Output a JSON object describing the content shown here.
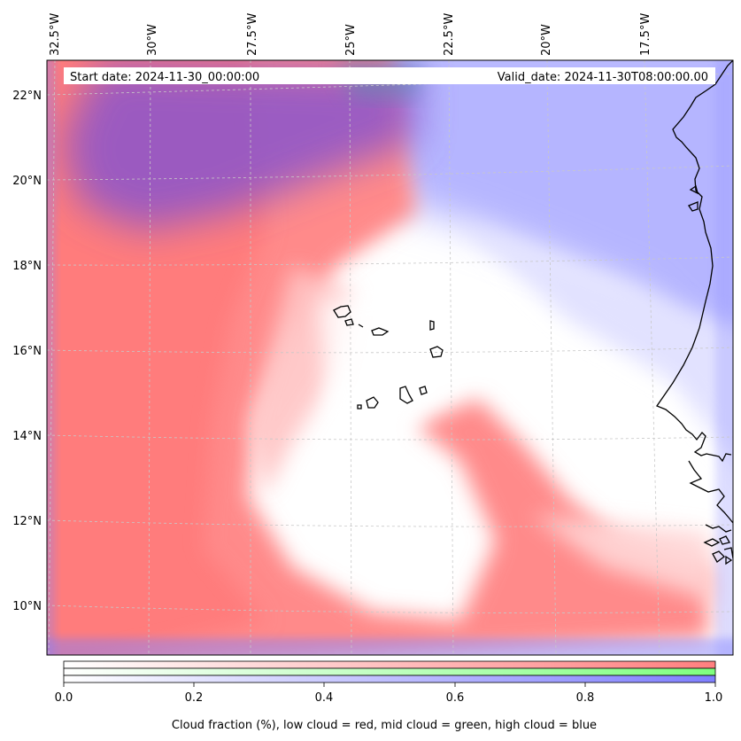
{
  "map": {
    "start_date": "Start date: 2024-11-30_00:00:00",
    "valid_date": "Valid_date: 2024-11-30T08:00:00.00",
    "lon_labels": [
      "32.5°W",
      "30°W",
      "27.5°W",
      "25°W",
      "22.5°W",
      "20°W",
      "17.5°W"
    ],
    "lat_labels": [
      "22°N",
      "20°N",
      "18°N",
      "16°N",
      "14°N",
      "12°N",
      "10°N"
    ],
    "colors": {
      "low_cloud": "#ff7f7f",
      "mid_cloud": "#7fff7f",
      "high_cloud": "#7f7fff",
      "coastline": "#000000",
      "gridline": "#c8c8c8"
    }
  },
  "colorbar": {
    "ticks": [
      "0.0",
      "0.2",
      "0.4",
      "0.6",
      "0.8",
      "1.0"
    ],
    "title": "Cloud fraction (%), low cloud = red, mid cloud = green, high cloud = blue"
  }
}
